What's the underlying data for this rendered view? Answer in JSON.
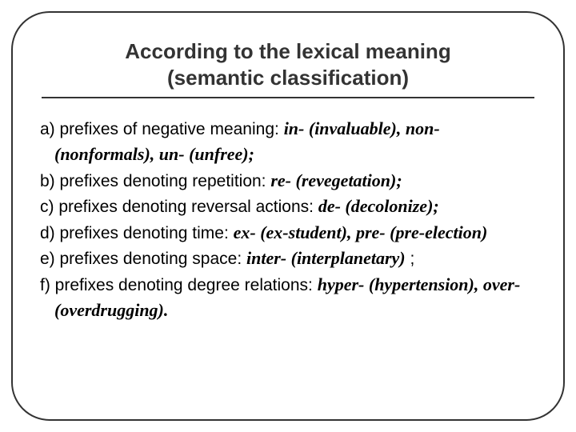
{
  "title": {
    "line1": "According to the lexical meaning",
    "line2": "(semantic classification)",
    "fontsize": 26,
    "font_weight": 700,
    "color": "#333333",
    "underline_color": "#333333"
  },
  "frame": {
    "border_color": "#333333",
    "border_width": 2,
    "border_radius": 48,
    "background_color": "#ffffff"
  },
  "body_text": {
    "fontsize": 21,
    "color": "#000000",
    "example_font": "Garamond serif",
    "example_style": "bold italic"
  },
  "items": [
    {
      "lead": "a) prefixes of negative meaning: ",
      "ex": "in- (invaluable), non- (nonformals), un- (unfree);"
    },
    {
      "lead": "b) prefixes denoting repetition: ",
      "ex": "re- (revegetation);"
    },
    {
      "lead": "c) prefixes denoting reversal actions: ",
      "ex": "de- (decolonize);"
    },
    {
      "lead": "d) prefixes denoting time: ",
      "ex": "ex- (ex-student), pre- (pre-election)"
    },
    {
      "lead": "e) prefixes denoting space: ",
      "ex_before": "inter- (interplanetary)",
      "trail": " ;"
    },
    {
      "lead": "f) prefixes denoting degree relations: ",
      "ex": "hyper- (hypertension), over- (overdrugging)."
    }
  ]
}
